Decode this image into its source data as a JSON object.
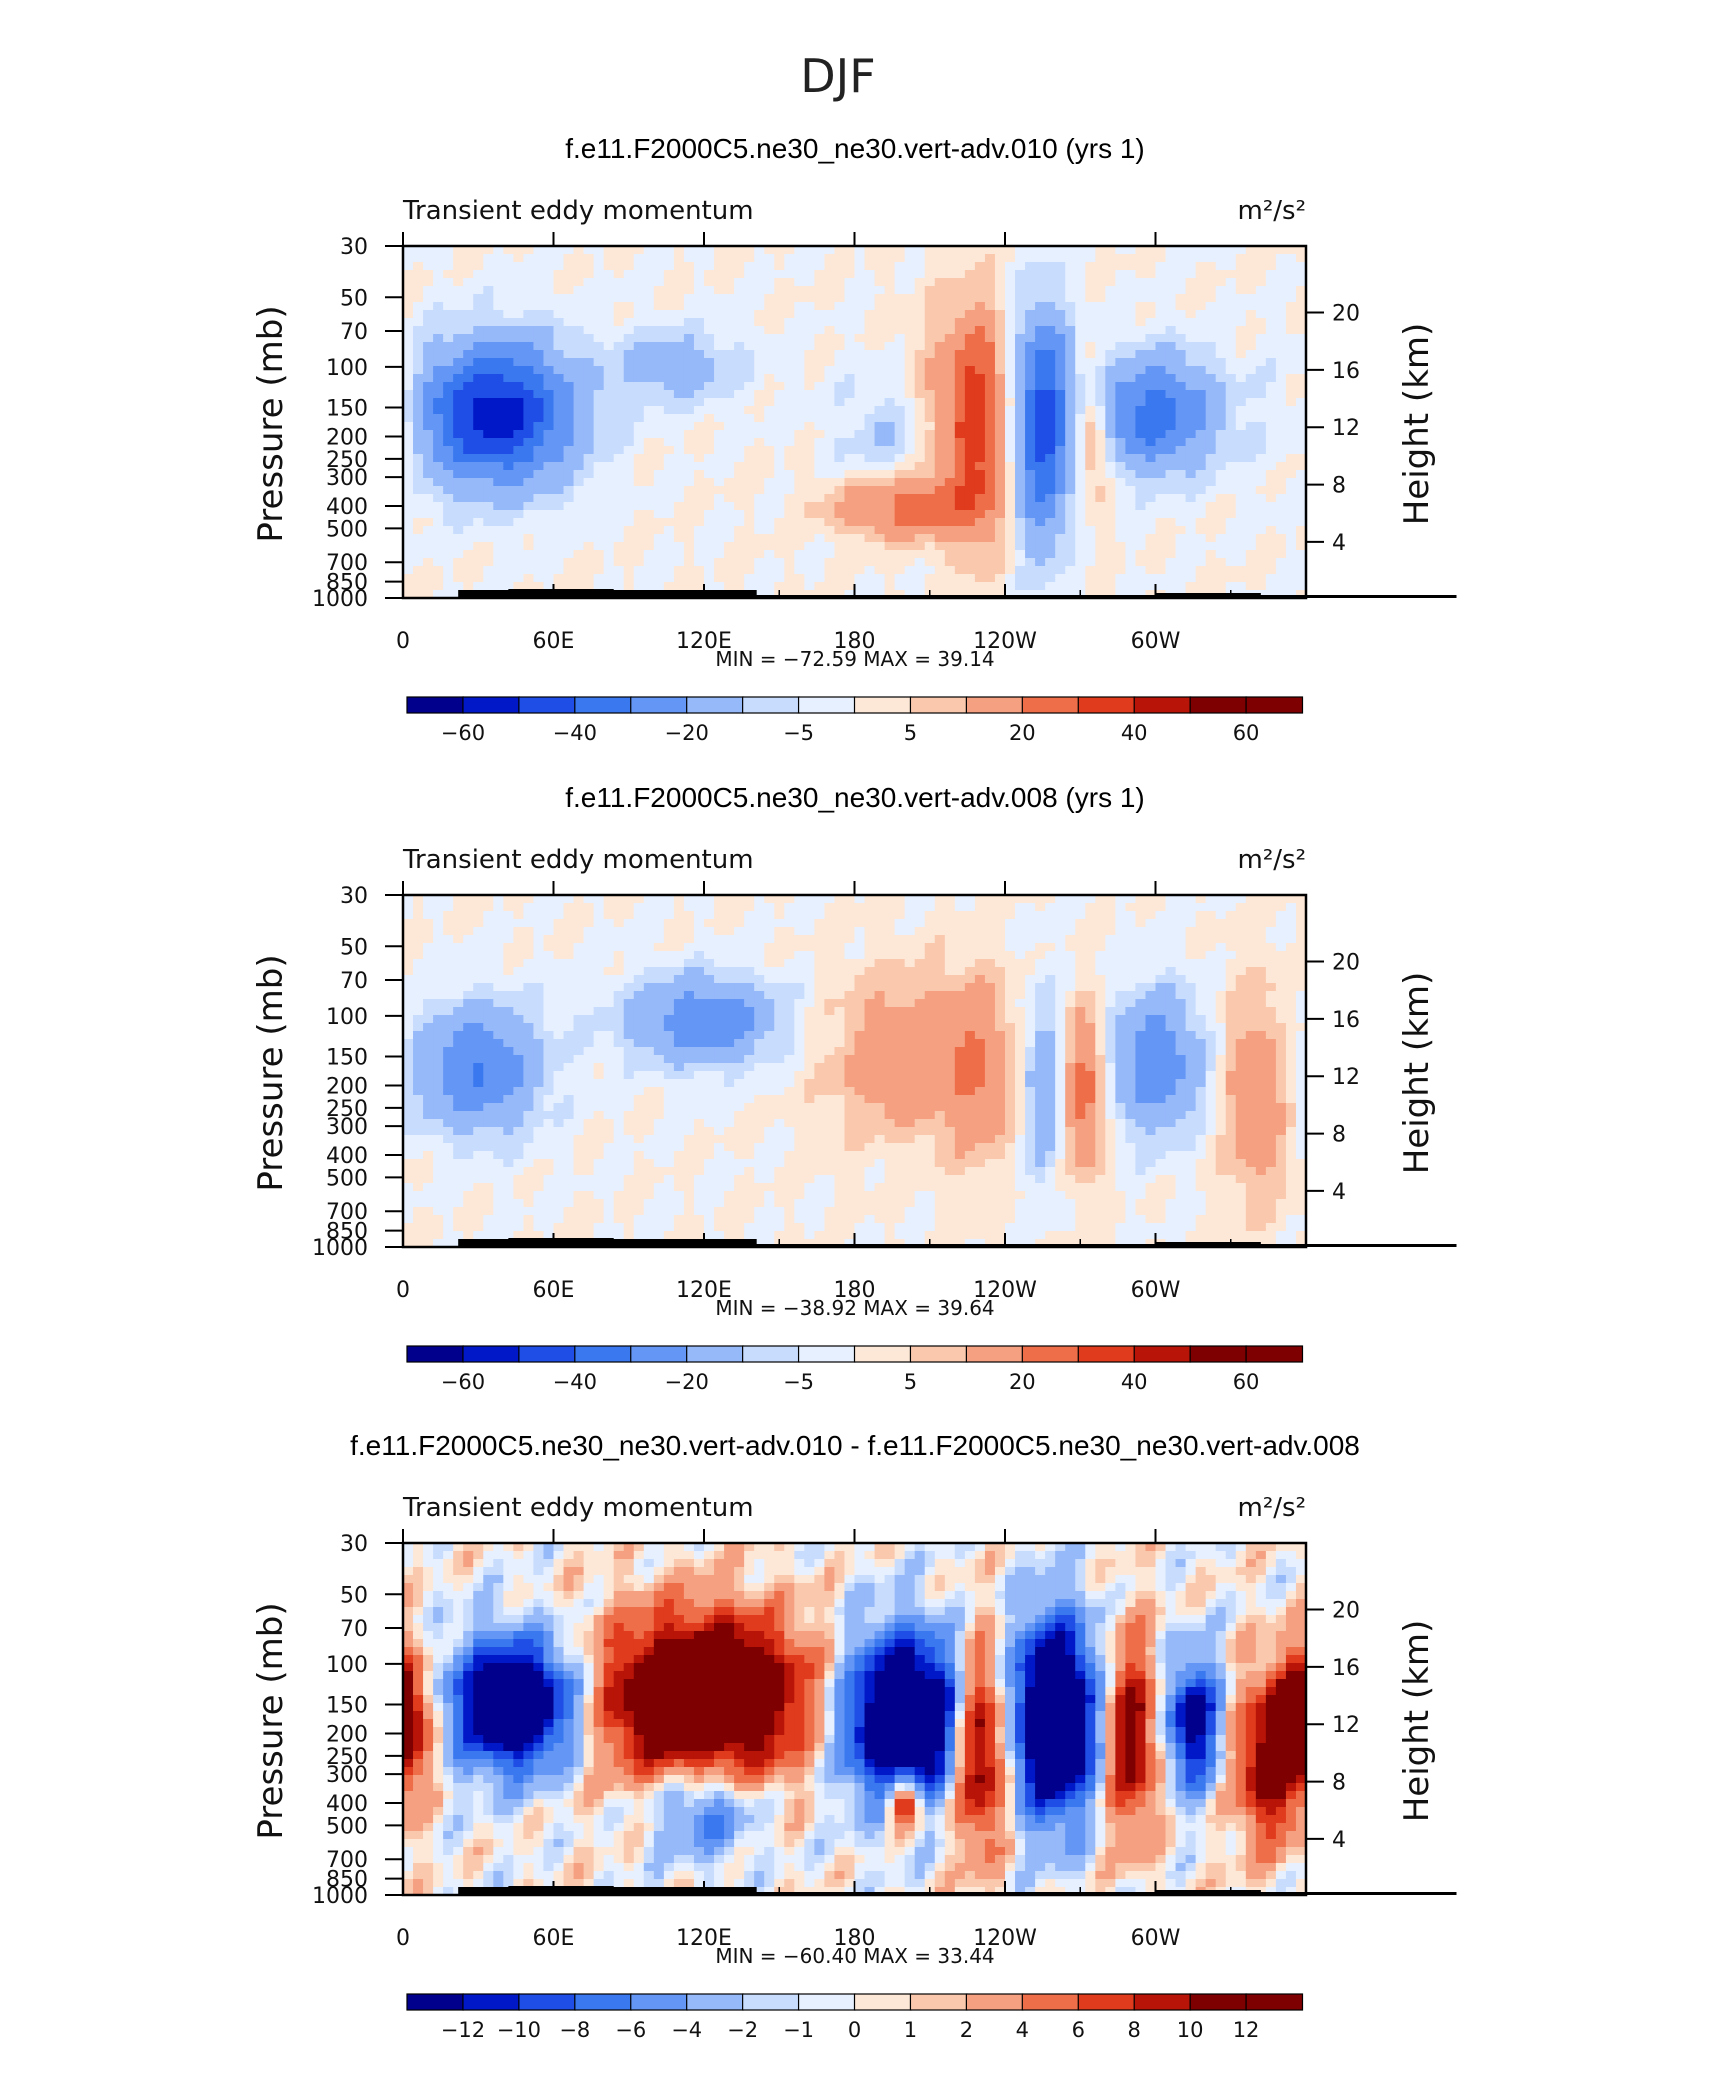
{
  "page_title": "DJF",
  "colors": {
    "main": [
      "#00008c",
      "#0018c8",
      "#1f4ee6",
      "#3a78f0",
      "#6496f5",
      "#96b9fa",
      "#c8dcfd",
      "#e6f0ff",
      "#fde8d8",
      "#fac8ad",
      "#f5a081",
      "#ef6e4a",
      "#e03b1c",
      "#b81407",
      "#7f0000"
    ]
  },
  "chart_data": [
    {
      "type": "heatmap",
      "title": "f.e11.F2000C5.ne30_ne30.vert-adv.010 (yrs 1)",
      "left_label": "Transient eddy momentum",
      "right_label": "m²/s²",
      "ylabel_left": "Pressure (mb)",
      "ylabel_right": "Height (km)",
      "xticks": [
        "0",
        "60E",
        "120E",
        "180",
        "120W",
        "60W"
      ],
      "yticks_pressure": [
        "30",
        "50",
        "70",
        "100",
        "150",
        "200",
        "250",
        "300",
        "400",
        "500",
        "700",
        "850",
        "1000"
      ],
      "yticks_height": [
        "20",
        "16",
        "12",
        "8",
        "4"
      ],
      "stats": {
        "min_label": "MIN =",
        "min": "−72.59",
        "max_label": "MAX =",
        "max": "39.14"
      },
      "colorbar_labels": [
        "−60",
        "−40",
        "−20",
        "−5",
        "5",
        "20",
        "40",
        "60"
      ],
      "features": [
        {
          "lon": 37,
          "p": 160,
          "value": -55,
          "wlon": 22,
          "wlogp": 0.22
        },
        {
          "lon": 110,
          "p": 100,
          "value": -15,
          "wlon": 18,
          "wlogp": 0.12
        },
        {
          "lon": 200,
          "p": 200,
          "value": -12,
          "wlon": 18,
          "wlogp": 0.2
        },
        {
          "lon": 218,
          "p": 160,
          "value": 18,
          "wlon": 12,
          "wlogp": 0.3
        },
        {
          "lon": 200,
          "p": 400,
          "value": 25,
          "wlon": 20,
          "wlogp": 0.1
        },
        {
          "lon": 230,
          "p": 180,
          "value": 28,
          "wlon": 8,
          "wlogp": 0.35
        },
        {
          "lon": 255,
          "p": 180,
          "value": -45,
          "wlon": 8,
          "wlogp": 0.35
        },
        {
          "lon": 275,
          "p": 200,
          "value": 20,
          "wlon": 5,
          "wlogp": 0.2
        },
        {
          "lon": 300,
          "p": 160,
          "value": -35,
          "wlon": 18,
          "wlogp": 0.18
        },
        {
          "lon": 0,
          "p": 170,
          "value": 12,
          "wlon": 6,
          "wlogp": 0.2
        }
      ]
    },
    {
      "type": "heatmap",
      "title": "f.e11.F2000C5.ne30_ne30.vert-adv.008 (yrs 1)",
      "left_label": "Transient eddy momentum",
      "right_label": "m²/s²",
      "ylabel_left": "Pressure (mb)",
      "ylabel_right": "Height (km)",
      "xticks": [
        "0",
        "60E",
        "120E",
        "180",
        "120W",
        "60W"
      ],
      "yticks_pressure": [
        "30",
        "50",
        "70",
        "100",
        "150",
        "200",
        "250",
        "300",
        "400",
        "500",
        "700",
        "850",
        "1000"
      ],
      "yticks_height": [
        "20",
        "16",
        "12",
        "8",
        "4"
      ],
      "stats": {
        "min_label": "MIN =",
        "min": "−38.92",
        "max_label": "MAX =",
        "max": "39.64"
      },
      "colorbar_labels": [
        "−60",
        "−40",
        "−20",
        "−5",
        "5",
        "20",
        "40",
        "60"
      ],
      "features": [
        {
          "lon": 30,
          "p": 170,
          "value": -30,
          "wlon": 18,
          "wlogp": 0.2
        },
        {
          "lon": 120,
          "p": 105,
          "value": -28,
          "wlon": 22,
          "wlogp": 0.14
        },
        {
          "lon": 200,
          "p": 150,
          "value": 18,
          "wlon": 22,
          "wlogp": 0.25
        },
        {
          "lon": 230,
          "p": 170,
          "value": 15,
          "wlon": 10,
          "wlogp": 0.3
        },
        {
          "lon": 255,
          "p": 200,
          "value": -18,
          "wlon": 6,
          "wlogp": 0.3
        },
        {
          "lon": 272,
          "p": 210,
          "value": 28,
          "wlon": 6,
          "wlogp": 0.25
        },
        {
          "lon": 300,
          "p": 160,
          "value": -28,
          "wlon": 14,
          "wlogp": 0.22
        },
        {
          "lon": 340,
          "p": 220,
          "value": 18,
          "wlon": 10,
          "wlogp": 0.35
        }
      ]
    },
    {
      "type": "heatmap",
      "title": "f.e11.F2000C5.ne30_ne30.vert-adv.010 - f.e11.F2000C5.ne30_ne30.vert-adv.008",
      "left_label": "Transient eddy momentum",
      "right_label": "m²/s²",
      "ylabel_left": "Pressure (mb)",
      "ylabel_right": "Height (km)",
      "xticks": [
        "0",
        "60E",
        "120E",
        "180",
        "120W",
        "60W"
      ],
      "yticks_pressure": [
        "30",
        "50",
        "70",
        "100",
        "150",
        "200",
        "250",
        "300",
        "400",
        "500",
        "700",
        "850",
        "1000"
      ],
      "yticks_height": [
        "20",
        "16",
        "12",
        "8",
        "4"
      ],
      "stats": {
        "min_label": "MIN =",
        "min": "−60.40",
        "max_label": "MAX =",
        "max": "33.44"
      },
      "colorbar_labels": [
        "−12",
        "−10",
        "−8",
        "−6",
        "−4",
        "−2",
        "−1",
        "0",
        "1",
        "2",
        "4",
        "6",
        "8",
        "10",
        "12"
      ],
      "features": [
        {
          "lon": 45,
          "p": 150,
          "value": -20,
          "wlon": 18,
          "wlogp": 0.2
        },
        {
          "lon": 0,
          "p": 170,
          "value": 14,
          "wlon": 8,
          "wlogp": 0.2
        },
        {
          "lon": 120,
          "p": 140,
          "value": 20,
          "wlon": 30,
          "wlogp": 0.25
        },
        {
          "lon": 200,
          "p": 170,
          "value": -22,
          "wlon": 18,
          "wlogp": 0.25
        },
        {
          "lon": 230,
          "p": 220,
          "value": 16,
          "wlon": 8,
          "wlogp": 0.3
        },
        {
          "lon": 260,
          "p": 170,
          "value": -22,
          "wlon": 12,
          "wlogp": 0.3
        },
        {
          "lon": 290,
          "p": 200,
          "value": 12,
          "wlon": 8,
          "wlogp": 0.3
        },
        {
          "lon": 315,
          "p": 180,
          "value": -14,
          "wlon": 8,
          "wlogp": 0.2
        },
        {
          "lon": 345,
          "p": 260,
          "value": 12,
          "wlon": 10,
          "wlogp": 0.25
        },
        {
          "lon": 120,
          "p": 420,
          "value": -8,
          "wlon": 15,
          "wlogp": 0.15
        },
        {
          "lon": 200,
          "p": 400,
          "value": 14,
          "wlon": 5,
          "wlogp": 0.08
        }
      ]
    }
  ]
}
